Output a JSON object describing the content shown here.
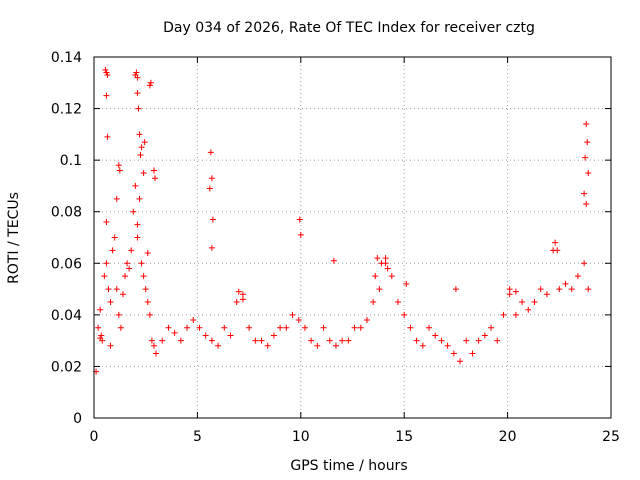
{
  "chart_data": {
    "type": "scatter",
    "title": "Day 034 of 2026, Rate Of TEC Index for receiver cztg",
    "xlabel": "GPS time / hours",
    "ylabel": "ROTI / TECUs",
    "xlim": [
      0,
      25
    ],
    "ylim": [
      0,
      0.14
    ],
    "xticks": [
      0,
      5,
      10,
      15,
      20,
      25
    ],
    "xtick_labels": [
      "0",
      "5",
      "10",
      "15",
      "20",
      "25"
    ],
    "yticks": [
      0,
      0.02,
      0.04,
      0.06,
      0.08,
      0.1,
      0.12,
      0.14
    ],
    "ytick_labels": [
      "0",
      "0.02",
      "0.04",
      "0.06",
      "0.08",
      "0.1",
      "0.12",
      "0.14"
    ],
    "grid": true,
    "marker": "plus",
    "color": "#ff0000",
    "series": [
      {
        "name": "ROTI",
        "x": [
          0.1,
          0.2,
          0.3,
          0.4,
          0.5,
          0.6,
          0.7,
          0.8,
          0.9,
          1.0,
          1.1,
          1.2,
          1.3,
          1.4,
          1.5,
          1.6,
          1.7,
          1.8,
          1.9,
          2.0,
          2.1,
          2.2,
          2.3,
          2.4,
          2.5,
          2.6,
          2.7,
          2.8,
          2.9,
          3.0,
          3.3,
          3.6,
          3.9,
          4.2,
          4.5,
          4.8,
          5.1,
          5.4,
          5.7,
          6.0,
          6.3,
          6.6,
          6.9,
          7.2,
          7.5,
          7.8,
          8.1,
          8.4,
          8.7,
          9.0,
          9.3,
          9.6,
          9.9,
          10.2,
          10.5,
          10.8,
          11.1,
          11.4,
          11.7,
          12.0,
          12.3,
          12.6,
          12.9,
          13.2,
          13.5,
          13.8,
          14.1,
          14.4,
          14.7,
          15.0,
          15.3,
          15.6,
          15.9,
          16.2,
          16.5,
          16.8,
          17.1,
          17.4,
          17.7,
          18.0,
          18.3,
          18.6,
          18.9,
          19.2,
          19.5,
          19.8,
          20.1,
          20.4,
          20.7,
          21.0,
          21.3,
          21.6,
          21.9,
          22.2,
          22.5,
          22.8,
          23.1,
          23.4,
          23.7,
          23.9,
          0.55,
          0.6,
          0.65,
          2.0,
          2.05,
          2.1,
          2.7,
          2.75,
          0.6,
          2.1,
          0.65,
          2.15,
          1.2,
          1.25,
          2.3,
          2.25,
          2.45,
          2.4,
          2.9,
          2.95,
          5.6,
          5.75,
          5.7,
          5.65,
          5.7,
          9.95,
          10.0,
          11.6,
          0.6,
          0.35,
          2.2,
          2.1,
          2.6,
          1.1,
          13.7,
          13.9,
          23.8,
          23.85,
          23.75,
          23.9,
          23.7,
          23.8,
          22.3,
          22.4,
          14.2,
          13.6,
          15.1,
          14.1,
          20.1,
          20.4,
          17.5,
          7.0,
          7.2,
          0.3,
          0.8
        ],
        "y": [
          0.018,
          0.035,
          0.042,
          0.03,
          0.055,
          0.06,
          0.05,
          0.045,
          0.065,
          0.07,
          0.05,
          0.04,
          0.035,
          0.048,
          0.055,
          0.06,
          0.058,
          0.065,
          0.08,
          0.09,
          0.07,
          0.085,
          0.06,
          0.055,
          0.05,
          0.045,
          0.04,
          0.03,
          0.028,
          0.025,
          0.03,
          0.035,
          0.033,
          0.03,
          0.035,
          0.038,
          0.035,
          0.032,
          0.03,
          0.028,
          0.035,
          0.032,
          0.045,
          0.048,
          0.035,
          0.03,
          0.03,
          0.028,
          0.032,
          0.035,
          0.035,
          0.04,
          0.038,
          0.035,
          0.03,
          0.028,
          0.035,
          0.03,
          0.028,
          0.03,
          0.03,
          0.035,
          0.035,
          0.038,
          0.045,
          0.05,
          0.06,
          0.055,
          0.045,
          0.04,
          0.035,
          0.03,
          0.028,
          0.035,
          0.032,
          0.03,
          0.028,
          0.025,
          0.022,
          0.03,
          0.025,
          0.03,
          0.032,
          0.035,
          0.03,
          0.04,
          0.048,
          0.04,
          0.045,
          0.042,
          0.045,
          0.05,
          0.048,
          0.065,
          0.05,
          0.052,
          0.05,
          0.055,
          0.06,
          0.05,
          0.135,
          0.134,
          0.133,
          0.133,
          0.134,
          0.132,
          0.129,
          0.13,
          0.125,
          0.126,
          0.109,
          0.12,
          0.098,
          0.096,
          0.105,
          0.102,
          0.107,
          0.095,
          0.096,
          0.093,
          0.089,
          0.077,
          0.093,
          0.103,
          0.066,
          0.077,
          0.071,
          0.061,
          0.076,
          0.032,
          0.11,
          0.075,
          0.064,
          0.085,
          0.062,
          0.06,
          0.114,
          0.107,
          0.101,
          0.095,
          0.087,
          0.083,
          0.068,
          0.065,
          0.058,
          0.055,
          0.052,
          0.062,
          0.05,
          0.049,
          0.05,
          0.049,
          0.046,
          0.031,
          0.028
        ]
      }
    ]
  }
}
